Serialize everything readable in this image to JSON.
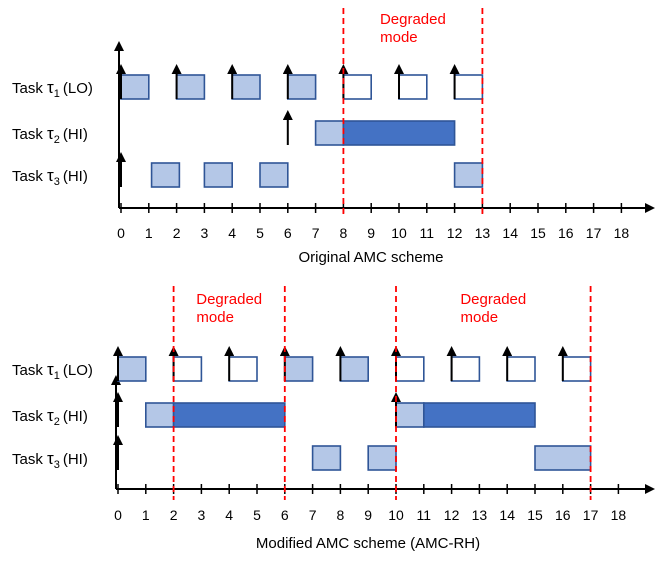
{
  "colors": {
    "light_block": "#b4c7e7",
    "dark_block": "#4472c4",
    "block_stroke": "#2f5597",
    "hollow_fill": "#ffffff",
    "mode_line": "#ff0000",
    "axis": "#000000",
    "text": "#000000",
    "mode_text": "#ff0000"
  },
  "panels": [
    {
      "id": "original",
      "caption": "Original AMC scheme",
      "tick_labels": [
        "0",
        "1",
        "2",
        "3",
        "4",
        "5",
        "6",
        "7",
        "8",
        "9",
        "10",
        "11",
        "12",
        "13",
        "14",
        "15",
        "16",
        "17",
        "18"
      ],
      "tasks": [
        {
          "name": "Task",
          "tau": "τ",
          "sub": "1",
          "crit": "(LO)"
        },
        {
          "name": "Task",
          "tau": "τ",
          "sub": "2",
          "crit": "(HI)"
        },
        {
          "name": "Task",
          "tau": "τ",
          "sub": "3",
          "crit": "(HI)"
        }
      ],
      "mode_lines": [
        8,
        13
      ],
      "degraded_labels": [
        {
          "line1": "Degraded",
          "line2": "mode",
          "start": 8,
          "end": 13
        }
      ],
      "releases": [
        {
          "task": 0,
          "t": 0
        },
        {
          "task": 0,
          "t": 2
        },
        {
          "task": 0,
          "t": 4
        },
        {
          "task": 0,
          "t": 6
        },
        {
          "task": 0,
          "t": 8
        },
        {
          "task": 0,
          "t": 10
        },
        {
          "task": 0,
          "t": 12
        },
        {
          "task": 1,
          "t": 6
        },
        {
          "task": 2,
          "t": 0
        }
      ],
      "blocks": [
        {
          "task": 0,
          "start": 0,
          "end": 1,
          "style": "light"
        },
        {
          "task": 0,
          "start": 2,
          "end": 3,
          "style": "light"
        },
        {
          "task": 0,
          "start": 4,
          "end": 5,
          "style": "light"
        },
        {
          "task": 0,
          "start": 6,
          "end": 7,
          "style": "light"
        },
        {
          "task": 0,
          "start": 8,
          "end": 9,
          "style": "hollow"
        },
        {
          "task": 0,
          "start": 10,
          "end": 11,
          "style": "hollow"
        },
        {
          "task": 0,
          "start": 12,
          "end": 13,
          "style": "hollow"
        },
        {
          "task": 1,
          "start": 7,
          "end": 8,
          "style": "light"
        },
        {
          "task": 1,
          "start": 8,
          "end": 12,
          "style": "dark"
        },
        {
          "task": 2,
          "start": 1.1,
          "end": 2.1,
          "style": "light"
        },
        {
          "task": 2,
          "start": 3,
          "end": 4,
          "style": "light"
        },
        {
          "task": 2,
          "start": 5,
          "end": 6,
          "style": "light"
        },
        {
          "task": 2,
          "start": 12,
          "end": 13,
          "style": "light"
        }
      ]
    },
    {
      "id": "modified",
      "caption": "Modified AMC scheme (AMC-RH)",
      "tick_labels": [
        "0",
        "1",
        "2",
        "3",
        "4",
        "5",
        "6",
        "7",
        "8",
        "9",
        "10",
        "11",
        "12",
        "13",
        "14",
        "15",
        "16",
        "17",
        "18"
      ],
      "tasks": [
        {
          "name": "Task",
          "tau": "τ",
          "sub": "1",
          "crit": "(LO)"
        },
        {
          "name": "Task",
          "tau": "τ",
          "sub": "2",
          "crit": "(HI)"
        },
        {
          "name": "Task",
          "tau": "τ",
          "sub": "3",
          "crit": "(HI)"
        }
      ],
      "mode_lines": [
        2,
        6,
        10,
        17
      ],
      "degraded_labels": [
        {
          "line1": "Degraded",
          "line2": "mode",
          "start": 2,
          "end": 6
        },
        {
          "line1": "Degraded",
          "line2": "mode",
          "start": 10,
          "end": 17
        }
      ],
      "releases": [
        {
          "task": 0,
          "t": 0
        },
        {
          "task": 0,
          "t": 2
        },
        {
          "task": 0,
          "t": 4
        },
        {
          "task": 0,
          "t": 6
        },
        {
          "task": 0,
          "t": 8
        },
        {
          "task": 0,
          "t": 10
        },
        {
          "task": 0,
          "t": 12
        },
        {
          "task": 0,
          "t": 14
        },
        {
          "task": 0,
          "t": 16
        },
        {
          "task": 1,
          "t": 0
        },
        {
          "task": 1,
          "t": 10
        },
        {
          "task": 2,
          "t": 0
        }
      ],
      "blocks": [
        {
          "task": 0,
          "start": 0,
          "end": 1,
          "style": "light"
        },
        {
          "task": 0,
          "start": 2,
          "end": 3,
          "style": "hollow"
        },
        {
          "task": 0,
          "start": 4,
          "end": 5,
          "style": "hollow"
        },
        {
          "task": 0,
          "start": 6,
          "end": 7,
          "style": "light"
        },
        {
          "task": 0,
          "start": 8,
          "end": 9,
          "style": "light"
        },
        {
          "task": 0,
          "start": 10,
          "end": 11,
          "style": "hollow"
        },
        {
          "task": 0,
          "start": 12,
          "end": 13,
          "style": "hollow"
        },
        {
          "task": 0,
          "start": 14,
          "end": 15,
          "style": "hollow"
        },
        {
          "task": 0,
          "start": 16,
          "end": 17,
          "style": "hollow"
        },
        {
          "task": 1,
          "start": 1,
          "end": 2,
          "style": "light"
        },
        {
          "task": 1,
          "start": 2,
          "end": 6,
          "style": "dark"
        },
        {
          "task": 1,
          "start": 10,
          "end": 11,
          "style": "light"
        },
        {
          "task": 1,
          "start": 11,
          "end": 15,
          "style": "dark"
        },
        {
          "task": 2,
          "start": 7,
          "end": 8,
          "style": "light"
        },
        {
          "task": 2,
          "start": 9,
          "end": 10,
          "style": "light"
        },
        {
          "task": 2,
          "start": 15,
          "end": 17,
          "style": "light"
        }
      ]
    }
  ]
}
